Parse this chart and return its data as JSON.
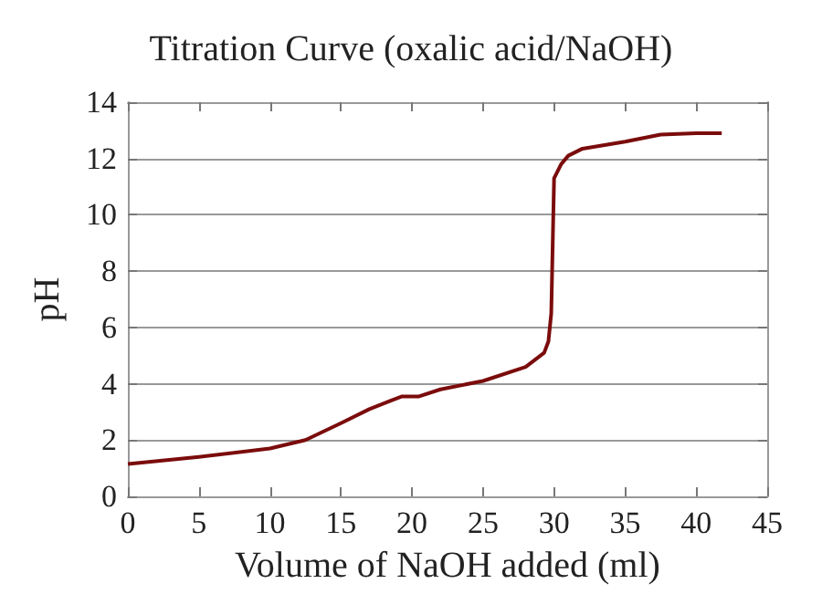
{
  "chart_data": {
    "type": "line",
    "title": "Titration Curve (oxalic acid/NaOH)",
    "xlabel": "Volume of NaOH added (ml)",
    "ylabel": "pH",
    "x": [
      0,
      5,
      10,
      12.5,
      15,
      17,
      18.5,
      19.3,
      20.5,
      22,
      25,
      28,
      29.3,
      29.6,
      29.8,
      30,
      30.5,
      31,
      32,
      35,
      37.5,
      40,
      41.8
    ],
    "series": [
      {
        "color": "#7b0c0c",
        "values": [
          1.15,
          1.4,
          1.7,
          2.0,
          2.6,
          3.1,
          3.4,
          3.55,
          3.55,
          3.8,
          4.1,
          4.6,
          5.1,
          5.5,
          6.5,
          11.3,
          11.8,
          12.1,
          12.35,
          12.6,
          12.85,
          12.9,
          12.9
        ]
      }
    ],
    "xlim": [
      0,
      45
    ],
    "xticks": [
      0,
      5,
      10,
      15,
      20,
      25,
      30,
      35,
      40,
      45
    ],
    "ylim": [
      0,
      14
    ],
    "yticks": [
      0,
      2,
      4,
      6,
      8,
      10,
      12,
      14
    ],
    "grid": "y",
    "marker": "none",
    "line_style": "solid"
  }
}
